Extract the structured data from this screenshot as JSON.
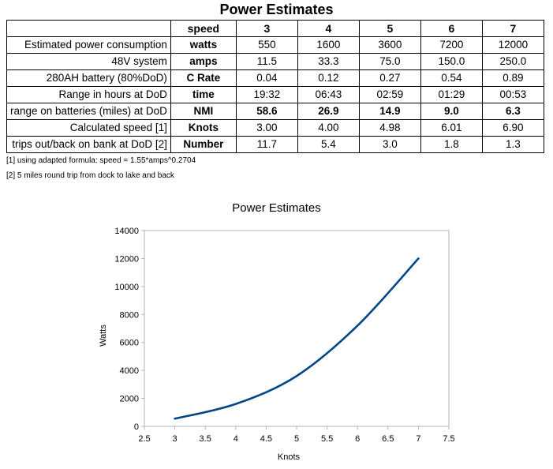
{
  "title": "Power Estimates",
  "table": {
    "header": [
      "",
      "speed",
      "3",
      "4",
      "5",
      "6",
      "7"
    ],
    "rows": [
      {
        "label": "Estimated power consumption",
        "unit": "watts",
        "values": [
          "550",
          "1600",
          "3600",
          "7200",
          "12000"
        ],
        "bold": false
      },
      {
        "label": "48V system",
        "unit": "amps",
        "values": [
          "11.5",
          "33.3",
          "75.0",
          "150.0",
          "250.0"
        ],
        "bold": false
      },
      {
        "label": "280AH battery (80%DoD)",
        "unit": "C Rate",
        "values": [
          "0.04",
          "0.12",
          "0.27",
          "0.54",
          "0.89"
        ],
        "bold": false
      },
      {
        "label": "Range in hours at DoD",
        "unit": "time",
        "values": [
          "19:32",
          "06:43",
          "02:59",
          "01:29",
          "00:53"
        ],
        "bold": false
      },
      {
        "label": "range on batteries (miles) at DoD",
        "unit": "NMI",
        "values": [
          "58.6",
          "26.9",
          "14.9",
          "9.0",
          "6.3"
        ],
        "bold": true
      },
      {
        "label": "Calculated speed [1]",
        "unit": "Knots",
        "values": [
          "3.00",
          "4.00",
          "4.98",
          "6.01",
          "6.90"
        ],
        "bold": false
      },
      {
        "label": "trips out/back on bank at DoD [2]",
        "unit": "Number",
        "values": [
          "11.7",
          "5.4",
          "3.0",
          "1.8",
          "1.3"
        ],
        "bold": false
      }
    ]
  },
  "notes": [
    "[1] using adapted formula: speed = 1.55*amps^0.2704",
    "[2] 5 miles round trip from dock to lake and back"
  ],
  "chart_data": {
    "type": "line",
    "title": "Power Estimates",
    "xlabel": "Knots",
    "ylabel": "Watts",
    "x": [
      3,
      4,
      5,
      6,
      7
    ],
    "series": [
      {
        "values": [
          550,
          1600,
          3600,
          7200,
          12000
        ]
      }
    ],
    "xlim": [
      2.5,
      7.5
    ],
    "ylim": [
      0,
      14000
    ],
    "xticks": [
      "2.5",
      "3",
      "3.5",
      "4",
      "4.5",
      "5",
      "5.5",
      "6",
      "6.5",
      "7",
      "7.5"
    ],
    "yticks": [
      "0",
      "2000",
      "4000",
      "6000",
      "8000",
      "10000",
      "12000",
      "14000"
    ],
    "grid": false,
    "line_color": "#004586"
  }
}
